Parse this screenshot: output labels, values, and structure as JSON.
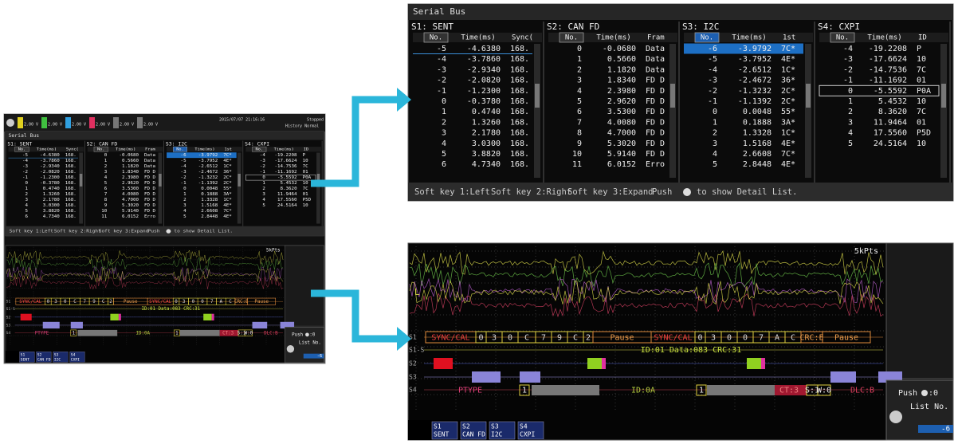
{
  "thumbnail_header": {
    "datetime": "2015/07/07 21:16:16",
    "status": "Stopped",
    "history": "History Normal",
    "channels": [
      "2.00 V",
      "2.00 V",
      "2.00 V",
      "2.00 V",
      "2.00 V",
      "2.00 V"
    ]
  },
  "serial_list": {
    "title": "Serial Bus",
    "sections": [
      {
        "title": "S1: SENT",
        "columns": [
          "No.",
          "Time(ms)",
          "Sync("
        ],
        "rows": [
          [
            "-5",
            "-4.6380",
            "168."
          ],
          [
            "-4",
            "-3.7860",
            "168."
          ],
          [
            "-3",
            "-2.9340",
            "168."
          ],
          [
            "-2",
            "-2.0820",
            "168."
          ],
          [
            "-1",
            "-1.2300",
            "168."
          ],
          [
            "0",
            "-0.3780",
            "168."
          ],
          [
            "1",
            "0.4740",
            "168."
          ],
          [
            "2",
            "1.3260",
            "168."
          ],
          [
            "3",
            "2.1780",
            "168."
          ],
          [
            "4",
            "3.0300",
            "168."
          ],
          [
            "5",
            "3.8820",
            "168."
          ],
          [
            "6",
            "4.7340",
            "168."
          ]
        ]
      },
      {
        "title": "S2: CAN FD",
        "columns": [
          "No.",
          "Time(ms)",
          "Fram"
        ],
        "rows": [
          [
            "0",
            "-0.0680",
            "Data"
          ],
          [
            "1",
            "0.5660",
            "Data"
          ],
          [
            "2",
            "1.1820",
            "Data"
          ],
          [
            "3",
            "1.8340",
            "FD D"
          ],
          [
            "4",
            "2.3980",
            "FD D"
          ],
          [
            "5",
            "2.9620",
            "FD D"
          ],
          [
            "6",
            "3.5300",
            "FD D"
          ],
          [
            "7",
            "4.0080",
            "FD D"
          ],
          [
            "8",
            "4.7000",
            "FD D"
          ],
          [
            "9",
            "5.3020",
            "FD D"
          ],
          [
            "10",
            "5.9140",
            "FD D"
          ],
          [
            "11",
            "6.0152",
            "Erro"
          ]
        ]
      },
      {
        "title": "S3: I2C",
        "columns": [
          "No.",
          "Time(ms)",
          "1st"
        ],
        "rows": [
          [
            "-6",
            "-3.9792",
            "7C*"
          ],
          [
            "-5",
            "-3.7952",
            "4E*"
          ],
          [
            "-4",
            "-2.6512",
            "1C*"
          ],
          [
            "-3",
            "-2.4672",
            "36*"
          ],
          [
            "-2",
            "-1.3232",
            "2C*"
          ],
          [
            "-1",
            "-1.1392",
            "2C*"
          ],
          [
            "0",
            "0.0048",
            "55*"
          ],
          [
            "1",
            "0.1888",
            "3A*"
          ],
          [
            "2",
            "1.3328",
            "1C*"
          ],
          [
            "3",
            "1.5168",
            "4E*"
          ],
          [
            "4",
            "2.6608",
            "7C*"
          ],
          [
            "5",
            "2.8448",
            "4E*"
          ]
        ]
      },
      {
        "title": "S4: CXPI",
        "columns": [
          "No.",
          "Time(ms)",
          "ID"
        ],
        "rows": [
          [
            "-4",
            "-19.2208",
            "P"
          ],
          [
            "-3",
            "-17.6624",
            "10"
          ],
          [
            "-2",
            "-14.7536",
            "7C"
          ],
          [
            "-1",
            "-11.1692",
            "01"
          ],
          [
            "0",
            "-5.5592",
            "P0A"
          ],
          [
            "1",
            "5.4532",
            "10"
          ],
          [
            "2",
            "8.3620",
            "7C"
          ],
          [
            "3",
            "11.9464",
            "01"
          ],
          [
            "4",
            "17.5560",
            "P5D"
          ],
          [
            "5",
            "24.5164",
            "10"
          ]
        ]
      }
    ],
    "soft_keys": [
      "Soft key 1:Left",
      "Soft key 2:Right",
      "Soft key 3:Expand"
    ],
    "push": "Push",
    "push_hint": "to show Detail List."
  },
  "waveform": {
    "points": "5kPts",
    "level_marker": "L",
    "traces": [
      "S1",
      "S1-S",
      "S2",
      "S3",
      "S4"
    ],
    "s1_decode": [
      "SYNC/CAL",
      "0",
      "3",
      "0",
      "C",
      "7",
      "9",
      "C",
      "2",
      "Pause",
      "SYNC/CAL",
      "0",
      "3",
      "0",
      "0",
      "7",
      "A",
      "C",
      "CRC:E",
      "Pause"
    ],
    "s1s_decode": "ID:01 Data:083 CRC:31",
    "s4_decode": [
      "PTYPE",
      "1",
      "ID:0A",
      "1",
      "CT:3",
      "S:1",
      "W:0",
      "DLC:B"
    ],
    "push": "Push",
    "push_value": ":0",
    "list_no_label": "List No.",
    "list_no": "-6",
    "tabs": [
      {
        "ch": "S1",
        "name": "SENT"
      },
      {
        "ch": "S2",
        "name": "CAN FD"
      },
      {
        "ch": "S3",
        "name": "I2C"
      },
      {
        "ch": "S4",
        "name": "CXPI"
      }
    ]
  }
}
